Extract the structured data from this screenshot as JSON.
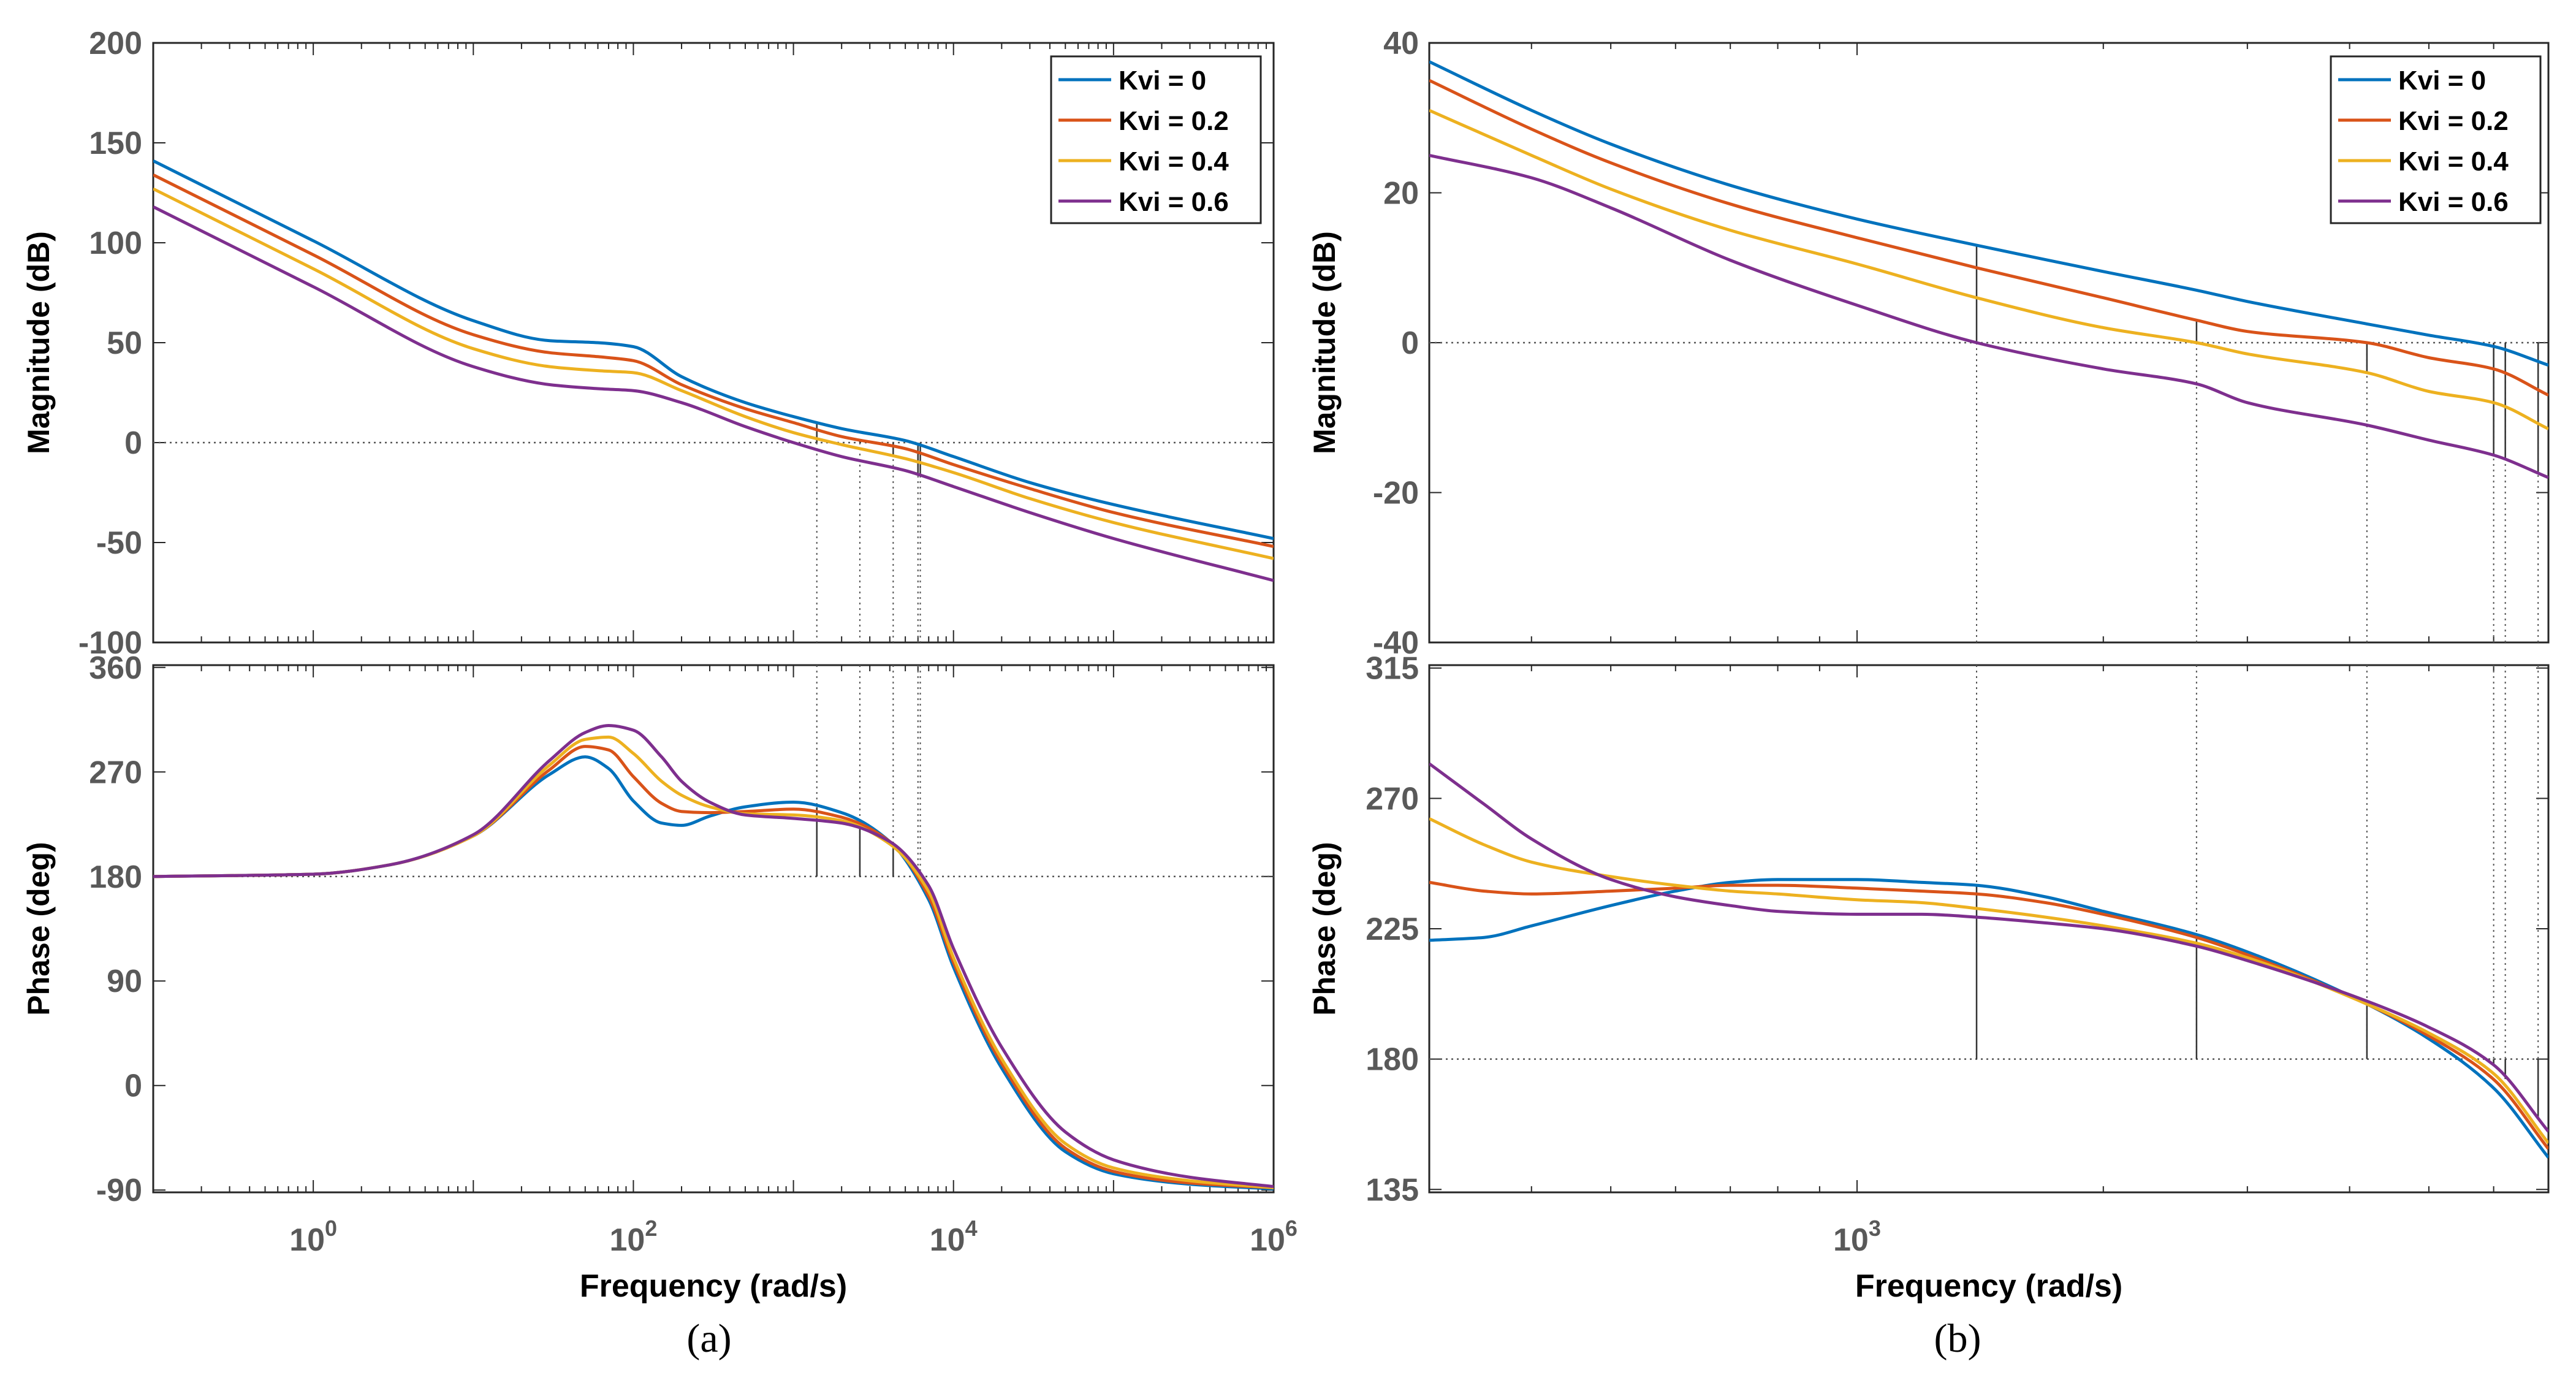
{
  "figure": {
    "captions": [
      "(a)",
      "(b)"
    ]
  },
  "colors": {
    "Kvi = 0": "#0072BD",
    "Kvi = 0.2": "#D95319",
    "Kvi = 0.4": "#EDB120",
    "Kvi = 0.6": "#7E2F8E",
    "axes": "#262626",
    "tick_text": "#595959",
    "guide": "#555555"
  },
  "chart_data": [
    {
      "panel": "(a)",
      "type": "line",
      "plot": "bode",
      "xscale": "log",
      "xlim": [
        0.1,
        1000000
      ],
      "xticks": [
        {
          "value": 1,
          "base": "10",
          "exp": "0"
        },
        {
          "value": 100,
          "base": "10",
          "exp": "2"
        },
        {
          "value": 10000,
          "base": "10",
          "exp": "4"
        },
        {
          "value": 1000000,
          "base": "10",
          "exp": "6"
        }
      ],
      "xlabel": "Frequency  (rad/s)",
      "legend": {
        "location": "top-right",
        "entries": [
          "Kvi = 0",
          "Kvi = 0.2",
          "Kvi = 0.4",
          "Kvi = 0.6"
        ]
      },
      "crossover_frequencies": [
        1400,
        2600,
        4200,
        6000,
        6200
      ],
      "magnitude": {
        "ylabel": "Magnitude (dB)",
        "ylim": [
          -100,
          200
        ],
        "yticks": [
          -100,
          -50,
          0,
          50,
          100,
          150,
          200
        ],
        "reference_line": 0,
        "x": [
          0.1,
          1,
          10,
          30,
          60,
          100,
          200,
          500,
          1000,
          2000,
          5000,
          10000,
          30000,
          100000,
          1000000
        ],
        "series": [
          {
            "name": "Kvi = 0",
            "values": [
              141,
              101,
              61,
              51,
              50,
              48,
              33,
              20,
              13,
              7,
              1,
              -7,
              -20,
              -31,
              -48
            ]
          },
          {
            "name": "Kvi = 0.2",
            "values": [
              134,
              94,
              54,
              45,
              43,
              41,
              29,
              17,
              10,
              3,
              -3,
              -11,
              -23,
              -35,
              -52
            ]
          },
          {
            "name": "Kvi = 0.4",
            "values": [
              127,
              87,
              47,
              38,
              36,
              35,
              26,
              13,
              5,
              -1,
              -8,
              -15,
              -28,
              -40,
              -58
            ]
          },
          {
            "name": "Kvi = 0.6",
            "values": [
              118,
              78,
              38,
              29,
              27,
              26,
              20,
              8,
              0,
              -7,
              -14,
              -22,
              -35,
              -48,
              -69
            ]
          }
        ]
      },
      "phase": {
        "ylabel": "Phase (deg)",
        "ylim": [
          -92,
          362
        ],
        "yticks": [
          -90,
          0,
          90,
          180,
          270,
          360
        ],
        "reference_line": 180,
        "x": [
          0.1,
          1,
          3,
          10,
          30,
          50,
          70,
          100,
          150,
          200,
          300,
          500,
          1000,
          2000,
          4000,
          7000,
          10000,
          20000,
          50000,
          100000,
          300000,
          1000000
        ],
        "series": [
          {
            "name": "Kvi = 0",
            "values": [
              180,
              182,
              190,
              215,
              268,
              283,
              273,
              245,
              226,
              224,
              232,
              240,
              244,
              235,
              210,
              160,
              102,
              15,
              -57,
              -76,
              -85,
              -89
            ]
          },
          {
            "name": "Kvi = 0.2",
            "values": [
              180,
              182,
              190,
              215,
              272,
              292,
              289,
              266,
              243,
              236,
              235,
              236,
              238,
              231,
              210,
              163,
              106,
              19,
              -54,
              -74,
              -84,
              -88
            ]
          },
          {
            "name": "Kvi = 0.4",
            "values": [
              180,
              182,
              190,
              215,
              276,
              298,
              300,
              286,
              262,
              250,
              240,
              234,
              233,
              228,
              208,
              167,
              110,
              23,
              -50,
              -71,
              -82,
              -88
            ]
          },
          {
            "name": "Kvi = 0.6",
            "values": [
              180,
              182,
              190,
              216,
              280,
              304,
              310,
              306,
              283,
              262,
              244,
              233,
              230,
              226,
              210,
              172,
              118,
              33,
              -40,
              -64,
              -79,
              -87
            ]
          }
        ]
      }
    },
    {
      "panel": "(b)",
      "type": "line",
      "plot": "bode",
      "xscale": "log",
      "xlim": [
        300,
        7000
      ],
      "xticks": [
        {
          "value": 1000,
          "base": "10",
          "exp": "3"
        }
      ],
      "xlabel": "Frequency  (rad/s)",
      "legend": {
        "location": "top-right",
        "entries": [
          "Kvi = 0",
          "Kvi = 0.2",
          "Kvi = 0.4",
          "Kvi = 0.6"
        ]
      },
      "crossover_frequencies": [
        1400,
        2600,
        4200,
        6000,
        6200,
        6800
      ],
      "magnitude": {
        "ylabel": "Magnitude (dB)",
        "ylim": [
          -40,
          40
        ],
        "yticks": [
          -40,
          -20,
          0,
          20,
          40
        ],
        "reference_line": 0,
        "x": [
          300,
          400,
          500,
          700,
          1000,
          1400,
          2000,
          2600,
          3000,
          4200,
          5000,
          6000,
          7000
        ],
        "series": [
          {
            "name": "Kvi = 0",
            "values": [
              37.5,
              31,
              26.5,
              21,
              16.5,
              13,
              9.5,
              7,
              5.5,
              2.5,
              1,
              -0.5,
              -3
            ]
          },
          {
            "name": "Kvi = 0.2",
            "values": [
              35,
              28.5,
              24,
              18.5,
              14,
              10,
              6,
              3,
              1.5,
              0,
              -2,
              -3.5,
              -7
            ]
          },
          {
            "name": "Kvi = 0.4",
            "values": [
              31,
              25,
              20.5,
              15,
              10.5,
              6,
              2,
              0,
              -1.5,
              -4,
              -6.5,
              -8,
              -11.5
            ]
          },
          {
            "name": "Kvi = 0.6",
            "values": [
              25,
              22,
              18,
              11,
              5,
              0,
              -3.5,
              -5.5,
              -8,
              -11,
              -13,
              -15,
              -18
            ]
          }
        ]
      },
      "phase": {
        "ylabel": "Phase (deg)",
        "ylim": [
          134,
          316
        ],
        "yticks": [
          135,
          180,
          225,
          270,
          315
        ],
        "reference_line": 180,
        "x": [
          300,
          350,
          400,
          500,
          600,
          700,
          800,
          1000,
          1200,
          1400,
          1700,
          2000,
          2600,
          3000,
          4200,
          5000,
          6000,
          7000
        ],
        "series": [
          {
            "name": "Kvi = 0",
            "values": [
              221,
              222,
              226,
              233,
              238,
              241,
              242,
              242,
              241,
              240,
              236,
              231,
              223,
              217,
              199,
              187,
              170,
              146
            ]
          },
          {
            "name": "Kvi = 0.2",
            "values": [
              241,
              238,
              237,
              238,
              239,
              240,
              240,
              239,
              238,
              237,
              234,
              230,
              222,
              216,
              199,
              188,
              173,
              149
            ]
          },
          {
            "name": "Kvi = 0.4",
            "values": [
              263,
              254,
              248,
              243,
              240,
              238,
              237,
              235,
              234,
              232,
              229,
              226,
              220,
              215,
              199,
              189,
              175,
              151
            ]
          },
          {
            "name": "Kvi = 0.6",
            "values": [
              282,
              268,
              256,
              242,
              236,
              233,
              231,
              230,
              230,
              229,
              227,
              225,
              219,
              214,
              200,
              191,
              178,
              155
            ]
          }
        ]
      }
    }
  ]
}
